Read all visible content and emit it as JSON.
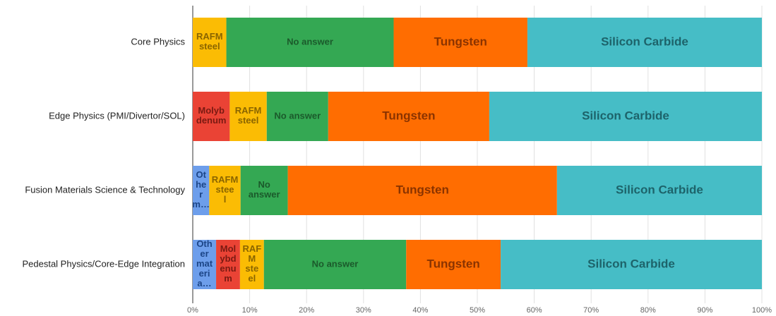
{
  "chart_data": {
    "type": "stacked_bar_horizontal",
    "categories": [
      "Core Physics",
      "Edge Physics (PMI/Divertor/SOL)",
      "Fusion Materials Science & Technology",
      "Pedestal Physics/Core-Edge Integration"
    ],
    "series": [
      {
        "name": "Other materials",
        "color": "#6d9eeb",
        "label_color": "#1c4587",
        "values": [
          null,
          null,
          2.9,
          4.1
        ],
        "value_labels": [
          null,
          null,
          "Other m…",
          "Other materia…"
        ]
      },
      {
        "name": "Molybdenum",
        "color": "#ea4335",
        "label_color": "#7a1a12",
        "values": [
          null,
          6.5,
          null,
          4.2
        ],
        "value_labels": [
          null,
          "Molybdenum",
          null,
          "Molybdenum"
        ]
      },
      {
        "name": "RAFM steel",
        "color": "#fbbc04",
        "label_color": "#8a6500",
        "values": [
          5.9,
          6.5,
          5.5,
          4.2
        ],
        "value_labels": [
          "RAFM steel",
          "RAFM steel",
          "RAFM steel",
          "RAFM steel"
        ]
      },
      {
        "name": "No answer",
        "color": "#34a853",
        "label_color": "#1b5a2b",
        "values": [
          29.4,
          10.8,
          8.3,
          25.0
        ],
        "value_labels": [
          "No answer",
          "No answer",
          "No answer",
          "No answer"
        ]
      },
      {
        "name": "Tungsten",
        "color": "#ff6d01",
        "label_color": "#8a3300",
        "values": [
          23.5,
          28.3,
          47.3,
          16.6
        ],
        "value_labels": [
          "Tungsten",
          "Tungsten",
          "Tungsten",
          "Tungsten"
        ]
      },
      {
        "name": "Silicon Carbide",
        "color": "#46bdc6",
        "label_color": "#1d636a",
        "values": [
          41.2,
          47.9,
          36.0,
          45.9
        ],
        "value_labels": [
          "Silicon Carbide",
          "Silicon Carbide",
          "Silicon Carbide",
          "Silicon Carbide"
        ]
      }
    ],
    "xlim": [
      0,
      100
    ],
    "xticks": [
      {
        "value": 0,
        "label": "0%"
      },
      {
        "value": 10,
        "label": "10%"
      },
      {
        "value": 20,
        "label": "20%"
      },
      {
        "value": 30,
        "label": "30%"
      },
      {
        "value": 40,
        "label": "40%"
      },
      {
        "value": 50,
        "label": "50%"
      },
      {
        "value": 60,
        "label": "60%"
      },
      {
        "value": 70,
        "label": "70%"
      },
      {
        "value": 80,
        "label": "80%"
      },
      {
        "value": 90,
        "label": "90%"
      },
      {
        "value": 100,
        "label": "100%"
      }
    ],
    "grid": true
  }
}
